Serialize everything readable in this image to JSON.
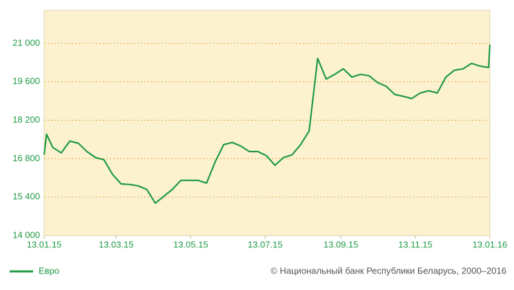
{
  "chart_data": {
    "type": "line",
    "x": [
      "13.01.15",
      "15.01.15",
      "20.01.15",
      "27.01.15",
      "03.02.15",
      "10.02.15",
      "17.02.15",
      "24.02.15",
      "03.03.15",
      "10.03.15",
      "17.03.15",
      "24.03.15",
      "31.03.15",
      "07.04.15",
      "14.04.15",
      "21.04.15",
      "28.04.15",
      "05.05.15",
      "12.05.15",
      "19.05.15",
      "26.05.15",
      "02.06.15",
      "09.06.15",
      "16.06.15",
      "23.06.15",
      "30.06.15",
      "07.07.15",
      "14.07.15",
      "21.07.15",
      "28.07.15",
      "04.08.15",
      "11.08.15",
      "18.08.15",
      "25.08.15",
      "01.09.15",
      "08.09.15",
      "15.09.15",
      "22.09.15",
      "29.09.15",
      "06.10.15",
      "13.10.15",
      "20.10.15",
      "27.10.15",
      "03.11.15",
      "10.11.15",
      "17.11.15",
      "24.11.15",
      "01.12.15",
      "08.12.15",
      "15.12.15",
      "22.12.15",
      "29.12.15",
      "05.01.16",
      "12.01.16",
      "13.01.16"
    ],
    "series": [
      {
        "name": "Евро",
        "color": "#1f9a45",
        "values": [
          16940,
          17690,
          17210,
          17010,
          17440,
          17360,
          17060,
          16840,
          16760,
          16230,
          15880,
          15860,
          15810,
          15680,
          15180,
          15430,
          15680,
          16010,
          16010,
          16010,
          15910,
          16680,
          17310,
          17390,
          17260,
          17060,
          17060,
          16910,
          16560,
          16840,
          16940,
          17310,
          17810,
          20450,
          19700,
          19870,
          20070,
          19770,
          19870,
          19820,
          19570,
          19440,
          19140,
          19070,
          18990,
          19190,
          19270,
          19190,
          19770,
          20020,
          20070,
          20270,
          20170,
          20120,
          20950
        ]
      }
    ],
    "xlim": [
      "13.01.15",
      "13.01.16"
    ],
    "xticks": [
      "13.01.15",
      "13.03.15",
      "13.05.15",
      "13.07.15",
      "13.09.15",
      "13.11.15",
      "13.01.16"
    ],
    "ylim": [
      14000,
      22200
    ],
    "yticks": [
      {
        "value": 14000,
        "label": "14 000"
      },
      {
        "value": 15400,
        "label": "15 400"
      },
      {
        "value": 16800,
        "label": "16 800"
      },
      {
        "value": 18200,
        "label": "18 200"
      },
      {
        "value": 19600,
        "label": "19 600"
      },
      {
        "value": 21000,
        "label": "21 000"
      }
    ],
    "grid": true,
    "source": "© Национальный банк Республики Беларусь, 2000–2016"
  }
}
